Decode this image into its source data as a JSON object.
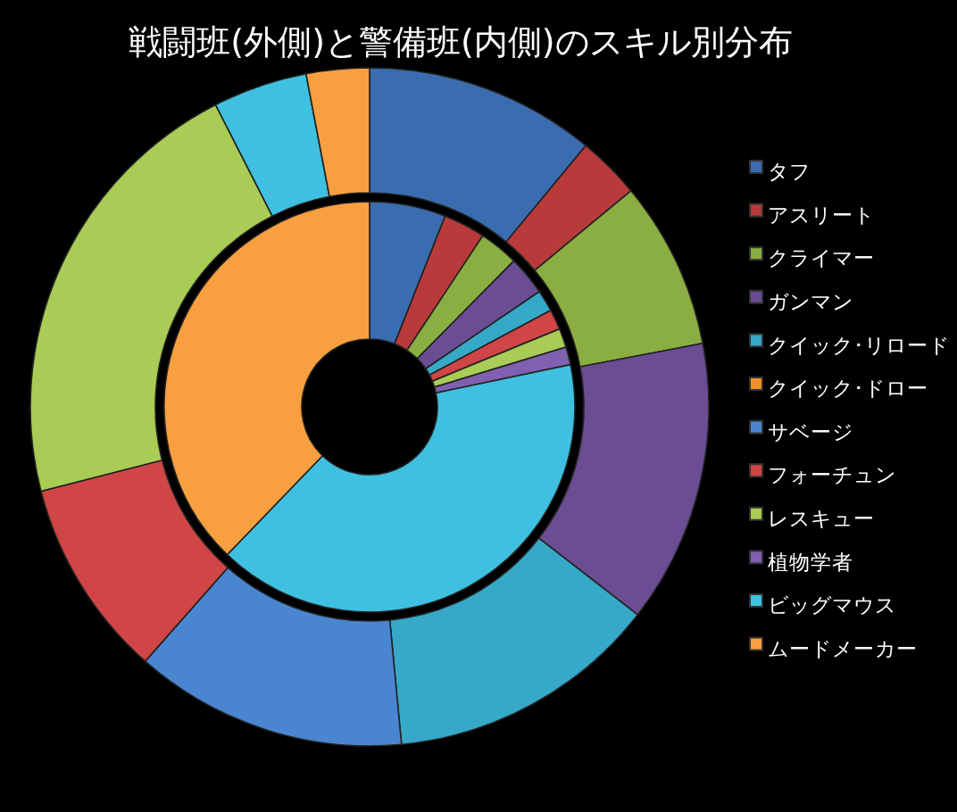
{
  "chart_data": {
    "type": "donut",
    "title": "戦闘班(外側)と警備班(内側)のスキル別分布",
    "categories": [
      "タフ",
      "アスリート",
      "クライマー",
      "ガンマン",
      "クイック･リロード",
      "クイック･ドロー",
      "サベージ",
      "フォーチュン",
      "レスキュー",
      "植物学者",
      "ビッグマウス",
      "ムードメーカー"
    ],
    "colors": [
      "#3a6db0",
      "#b83a3a",
      "#8aae42",
      "#6a4d92",
      "#36a8c8",
      "#f0902a",
      "#4a86d0",
      "#d04545",
      "#a8cc55",
      "#8060b0",
      "#40c0e0",
      "#f8a040"
    ],
    "series": [
      {
        "values": [
          11,
          3,
          8,
          13.5,
          13,
          0,
          13,
          9.5,
          21.5,
          0,
          4.5,
          3
        ]
      },
      {
        "values": [
          6,
          3.3,
          3.1,
          3.1,
          1.7,
          0,
          0,
          1.6,
          1.5,
          1.4,
          40.5,
          37.8
        ]
      }
    ],
    "legend": "right"
  }
}
